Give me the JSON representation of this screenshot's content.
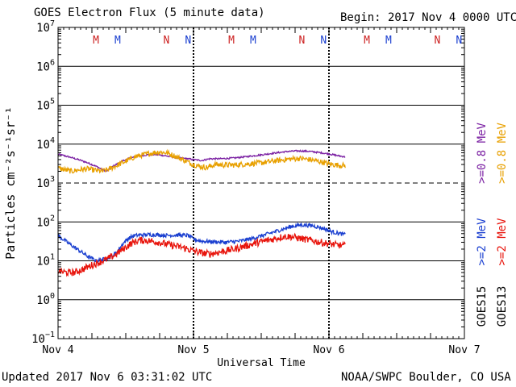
{
  "header": {
    "title": "GOES Electron Flux (5 minute data)",
    "begin": "Begin: 2017 Nov 4 0000 UTC"
  },
  "footer": {
    "updated": "Updated 2017 Nov  6 03:31:02 UTC",
    "source": "NOAA/SWPC Boulder, CO USA"
  },
  "colors": {
    "goes15_high": "#7a1fa2",
    "goes13_high": "#e8a000",
    "goes15_low": "#1a3fd0",
    "goes13_low": "#e8140c",
    "marker_m": "#cc2020",
    "marker_n_red": "#cc2020",
    "marker_blue": "#1a3fd0"
  },
  "chart_data": {
    "type": "line",
    "title": "GOES Electron Flux (5 minute data)",
    "xlabel": "Universal Time",
    "ylabel": "Particles cm⁻²s⁻¹sr⁻¹",
    "yscale": "log",
    "ylim": [
      0.1,
      10000000
    ],
    "xlim": [
      0,
      3
    ],
    "x_ticks": [
      {
        "x": 0,
        "label": "Nov 4"
      },
      {
        "x": 1,
        "label": "Nov 5"
      },
      {
        "x": 2,
        "label": "Nov 6"
      },
      {
        "x": 3,
        "label": "Nov 7"
      }
    ],
    "y_ticks": [
      {
        "exp": 7,
        "base": "10",
        "sup": "7"
      },
      {
        "exp": 6,
        "base": "10",
        "sup": "6"
      },
      {
        "exp": 5,
        "base": "10",
        "sup": "5"
      },
      {
        "exp": 4,
        "base": "10",
        "sup": "4"
      },
      {
        "exp": 3,
        "base": "10",
        "sup": "3"
      },
      {
        "exp": 2,
        "base": "10",
        "sup": "2"
      },
      {
        "exp": 1,
        "base": "10",
        "sup": "1"
      },
      {
        "exp": 0,
        "base": "10",
        "sup": "0"
      },
      {
        "exp": -1,
        "base": "10",
        "sup": "−1"
      }
    ],
    "threshold": {
      "value": 1000,
      "style": "dashed"
    },
    "day_boundaries": [
      1,
      2
    ],
    "legend": [
      {
        "satellite": "GOES15",
        "label": ">=0.8 MeV",
        "color": "#7a1fa2"
      },
      {
        "satellite": "GOES13",
        "label": ">=0.8 MeV",
        "color": "#e8a000"
      },
      {
        "satellite": "GOES15",
        "label": ">=2 MeV",
        "color": "#1a3fd0"
      },
      {
        "satellite": "GOES13",
        "label": ">=2 MeV",
        "color": "#e8140c"
      }
    ],
    "legend_satellites": [
      "GOES15",
      "GOES13"
    ],
    "markers": [
      {
        "x": 0.28,
        "label": "M",
        "color": "#cc2020"
      },
      {
        "x": 0.44,
        "label": "M",
        "color": "#1a3fd0"
      },
      {
        "x": 0.8,
        "label": "N",
        "color": "#cc2020"
      },
      {
        "x": 0.96,
        "label": "N",
        "color": "#1a3fd0"
      },
      {
        "x": 1.28,
        "label": "M",
        "color": "#cc2020"
      },
      {
        "x": 1.44,
        "label": "M",
        "color": "#1a3fd0"
      },
      {
        "x": 1.8,
        "label": "N",
        "color": "#cc2020"
      },
      {
        "x": 1.96,
        "label": "N",
        "color": "#1a3fd0"
      },
      {
        "x": 2.28,
        "label": "M",
        "color": "#cc2020"
      },
      {
        "x": 2.44,
        "label": "M",
        "color": "#1a3fd0"
      },
      {
        "x": 2.8,
        "label": "N",
        "color": "#cc2020"
      },
      {
        "x": 2.96,
        "label": "N",
        "color": "#1a3fd0"
      }
    ],
    "series": [
      {
        "name": "GOES15 >=0.8 MeV",
        "color": "#7a1fa2",
        "noise": 0.02,
        "points": [
          [
            0,
            5500
          ],
          [
            0.05,
            5000
          ],
          [
            0.1,
            4500
          ],
          [
            0.16,
            3900
          ],
          [
            0.22,
            3300
          ],
          [
            0.28,
            2700
          ],
          [
            0.33,
            2200
          ],
          [
            0.36,
            2000
          ],
          [
            0.4,
            2600
          ],
          [
            0.45,
            3300
          ],
          [
            0.5,
            4000
          ],
          [
            0.55,
            4600
          ],
          [
            0.6,
            5000
          ],
          [
            0.66,
            5300
          ],
          [
            0.72,
            5400
          ],
          [
            0.78,
            5100
          ],
          [
            0.84,
            4700
          ],
          [
            0.9,
            4400
          ],
          [
            0.96,
            4200
          ],
          [
            1.0,
            4000
          ],
          [
            1.06,
            3800
          ],
          [
            1.12,
            4200
          ],
          [
            1.2,
            4200
          ],
          [
            1.3,
            4400
          ],
          [
            1.4,
            4800
          ],
          [
            1.5,
            5300
          ],
          [
            1.6,
            5900
          ],
          [
            1.7,
            6500
          ],
          [
            1.78,
            6700
          ],
          [
            1.86,
            6500
          ],
          [
            1.94,
            6000
          ],
          [
            2.0,
            5600
          ],
          [
            2.06,
            5100
          ],
          [
            2.12,
            4700
          ]
        ]
      },
      {
        "name": "GOES13 >=0.8 MeV",
        "color": "#e8a000",
        "noise": 0.07,
        "points": [
          [
            0,
            2400
          ],
          [
            0.05,
            2200
          ],
          [
            0.1,
            2000
          ],
          [
            0.16,
            2200
          ],
          [
            0.22,
            2300
          ],
          [
            0.28,
            2100
          ],
          [
            0.33,
            2000
          ],
          [
            0.38,
            2300
          ],
          [
            0.44,
            2900
          ],
          [
            0.5,
            3600
          ],
          [
            0.56,
            4600
          ],
          [
            0.62,
            5200
          ],
          [
            0.68,
            5800
          ],
          [
            0.74,
            6300
          ],
          [
            0.8,
            6000
          ],
          [
            0.86,
            5000
          ],
          [
            0.92,
            4000
          ],
          [
            0.98,
            3200
          ],
          [
            1.04,
            2700
          ],
          [
            1.1,
            2500
          ],
          [
            1.16,
            3000
          ],
          [
            1.22,
            2900
          ],
          [
            1.3,
            2900
          ],
          [
            1.4,
            3100
          ],
          [
            1.5,
            3300
          ],
          [
            1.6,
            3700
          ],
          [
            1.7,
            4100
          ],
          [
            1.78,
            4300
          ],
          [
            1.86,
            4000
          ],
          [
            1.94,
            3500
          ],
          [
            2.0,
            3100
          ],
          [
            2.06,
            2900
          ],
          [
            2.12,
            2800
          ]
        ]
      },
      {
        "name": "GOES15 >=2 MeV",
        "color": "#1a3fd0",
        "noise": 0.05,
        "points": [
          [
            0,
            45
          ],
          [
            0.05,
            33
          ],
          [
            0.1,
            25
          ],
          [
            0.16,
            18
          ],
          [
            0.22,
            13
          ],
          [
            0.28,
            10
          ],
          [
            0.34,
            11
          ],
          [
            0.4,
            13
          ],
          [
            0.44,
            18
          ],
          [
            0.48,
            28
          ],
          [
            0.52,
            38
          ],
          [
            0.56,
            44
          ],
          [
            0.6,
            46
          ],
          [
            0.66,
            47
          ],
          [
            0.72,
            47
          ],
          [
            0.8,
            45
          ],
          [
            0.88,
            46
          ],
          [
            0.96,
            45
          ],
          [
            1.0,
            36
          ],
          [
            1.06,
            32
          ],
          [
            1.14,
            31
          ],
          [
            1.24,
            30
          ],
          [
            1.34,
            32
          ],
          [
            1.44,
            38
          ],
          [
            1.54,
            48
          ],
          [
            1.64,
            62
          ],
          [
            1.72,
            76
          ],
          [
            1.8,
            84
          ],
          [
            1.88,
            80
          ],
          [
            1.96,
            68
          ],
          [
            2.02,
            56
          ],
          [
            2.08,
            50
          ],
          [
            2.12,
            47
          ]
        ]
      },
      {
        "name": "GOES13 >=2 MeV",
        "color": "#e8140c",
        "noise": 0.09,
        "points": [
          [
            0,
            5.5
          ],
          [
            0.06,
            5
          ],
          [
            0.12,
            5
          ],
          [
            0.18,
            6
          ],
          [
            0.24,
            7.5
          ],
          [
            0.3,
            9
          ],
          [
            0.36,
            11
          ],
          [
            0.42,
            14
          ],
          [
            0.48,
            20
          ],
          [
            0.54,
            28
          ],
          [
            0.6,
            34
          ],
          [
            0.66,
            33
          ],
          [
            0.72,
            31
          ],
          [
            0.78,
            28
          ],
          [
            0.84,
            25
          ],
          [
            0.92,
            22
          ],
          [
            1.0,
            18
          ],
          [
            1.06,
            16
          ],
          [
            1.12,
            15
          ],
          [
            1.2,
            17
          ],
          [
            1.3,
            20
          ],
          [
            1.4,
            25
          ],
          [
            1.5,
            31
          ],
          [
            1.6,
            37
          ],
          [
            1.66,
            42
          ],
          [
            1.72,
            42
          ],
          [
            1.8,
            37
          ],
          [
            1.88,
            33
          ],
          [
            1.96,
            29
          ],
          [
            2.04,
            26
          ],
          [
            2.12,
            24
          ]
        ]
      }
    ]
  }
}
